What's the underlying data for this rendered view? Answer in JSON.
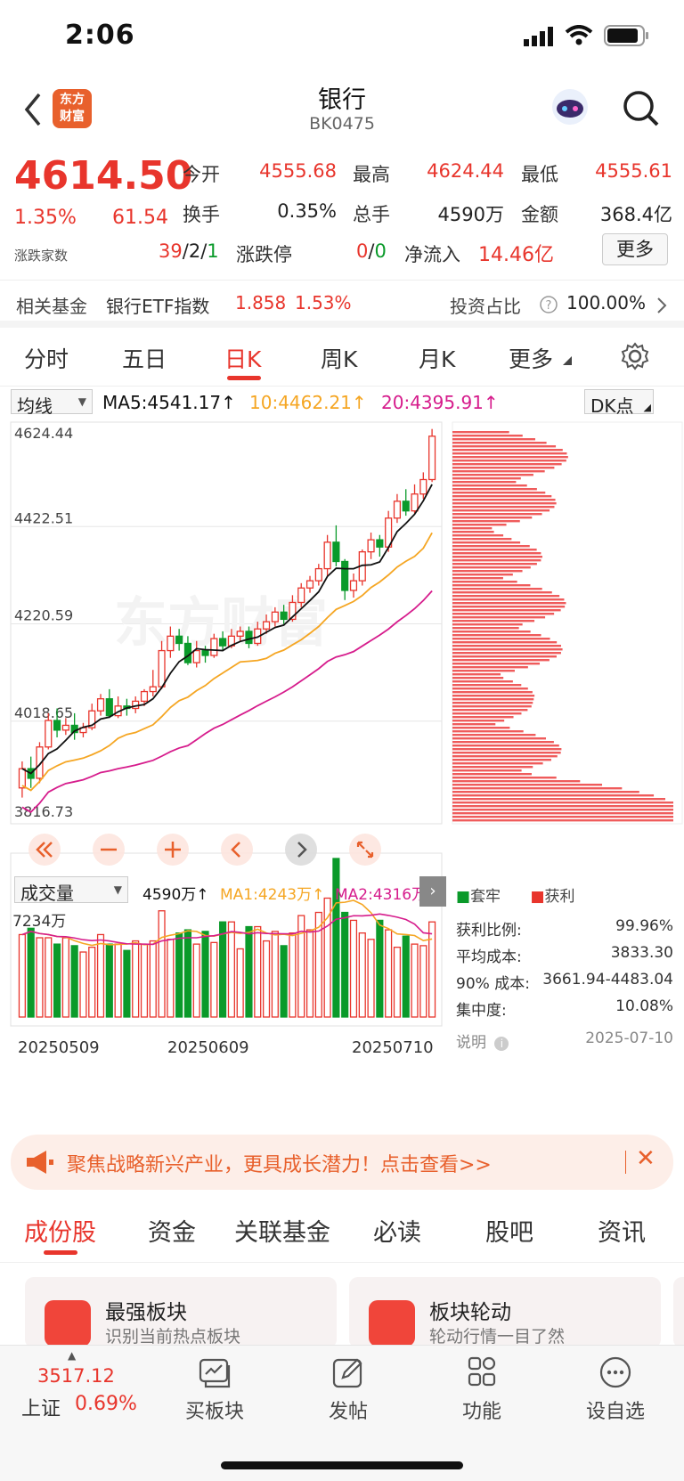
{
  "status": {
    "time": "2:06"
  },
  "header": {
    "title": "银行",
    "code": "BK0475",
    "logo_line1": "东方",
    "logo_line2": "财富"
  },
  "quote": {
    "price": "4614.50",
    "pct": "1.35%",
    "chg": "61.54",
    "breadth_label": "涨跌家数",
    "open_label": "今开",
    "open": "4555.68",
    "high_label": "最高",
    "high": "4624.44",
    "low_label": "最低",
    "low": "4555.61",
    "turnover_label": "换手",
    "turnover": "0.35%",
    "vol_label": "总手",
    "vol": "4590万",
    "amount_label": "金额",
    "amount": "368.4亿",
    "breadth_up": "39",
    "breadth_sep1": "/",
    "breadth_flat": "2",
    "breadth_sep2": "/",
    "breadth_down": "1",
    "limit_label": "涨跌停",
    "limit_up": "0",
    "limit_sep": "/",
    "limit_down": "0",
    "flow_label": "净流入",
    "flow": "14.46亿",
    "more": "更多"
  },
  "fund": {
    "label": "相关基金",
    "name": "银行ETF指数",
    "price": "1.858",
    "pct": "1.53%",
    "ratio_label": "投资占比",
    "ratio": "100.00%"
  },
  "tabs": [
    "分时",
    "五日",
    "日K",
    "周K",
    "月K",
    "更多"
  ],
  "active_tab": "日K",
  "ma": {
    "selector": "均线",
    "ma5": "MA5:4541.17↑",
    "ma10": "10:4462.21↑",
    "ma20": "20:4395.91↑",
    "dk": "DK点"
  },
  "chart_data": {
    "type": "candlestick",
    "y_ticks": [
      "4624.44",
      "4422.51",
      "4220.59",
      "4018.65",
      "3816.73"
    ],
    "ylim": [
      3816.73,
      4624.44
    ],
    "x_ticks": [
      "20250509",
      "20250609",
      "20250710"
    ],
    "volume": {
      "selector": "成交量",
      "current": "4590万↑",
      "ma1": "MA1:4243万↑",
      "ma2": "MA2:4316万",
      "max_label": "7234万"
    },
    "candles": [
      [
        3880,
        3920,
        3860,
        3935
      ],
      [
        3920,
        3900,
        3880,
        3945
      ],
      [
        3900,
        3965,
        3890,
        3975
      ],
      [
        3965,
        4020,
        3960,
        4035
      ],
      [
        4020,
        4000,
        3985,
        4045
      ],
      [
        4000,
        4010,
        3990,
        4025
      ],
      [
        4010,
        3995,
        3980,
        4035
      ],
      [
        3995,
        4005,
        3985,
        4015
      ],
      [
        4005,
        4040,
        4000,
        4055
      ],
      [
        4040,
        4065,
        4030,
        4075
      ],
      [
        4065,
        4030,
        4025,
        4085
      ],
      [
        4030,
        4050,
        4025,
        4070
      ],
      [
        4050,
        4045,
        4030,
        4065
      ],
      [
        4045,
        4060,
        4035,
        4070
      ],
      [
        4060,
        4080,
        4050,
        4085
      ],
      [
        4080,
        4090,
        4070,
        4125
      ],
      [
        4090,
        4165,
        4085,
        4185
      ],
      [
        4165,
        4195,
        4150,
        4215
      ],
      [
        4195,
        4180,
        4165,
        4210
      ],
      [
        4180,
        4140,
        4135,
        4195
      ],
      [
        4140,
        4165,
        4130,
        4185
      ],
      [
        4165,
        4155,
        4140,
        4175
      ],
      [
        4155,
        4190,
        4150,
        4200
      ],
      [
        4190,
        4175,
        4165,
        4205
      ],
      [
        4175,
        4195,
        4170,
        4210
      ],
      [
        4195,
        4205,
        4185,
        4215
      ],
      [
        4205,
        4180,
        4170,
        4215
      ],
      [
        4180,
        4210,
        4175,
        4225
      ],
      [
        4210,
        4225,
        4200,
        4240
      ],
      [
        4225,
        4245,
        4215,
        4255
      ],
      [
        4245,
        4230,
        4220,
        4260
      ],
      [
        4230,
        4265,
        4225,
        4280
      ],
      [
        4265,
        4295,
        4255,
        4305
      ],
      [
        4295,
        4310,
        4285,
        4320
      ],
      [
        4310,
        4335,
        4300,
        4345
      ],
      [
        4335,
        4390,
        4320,
        4405
      ],
      [
        4390,
        4350,
        4340,
        4425
      ],
      [
        4350,
        4290,
        4270,
        4355
      ],
      [
        4290,
        4310,
        4275,
        4325
      ],
      [
        4310,
        4370,
        4300,
        4375
      ],
      [
        4370,
        4395,
        4355,
        4410
      ],
      [
        4395,
        4380,
        4360,
        4405
      ],
      [
        4380,
        4440,
        4370,
        4455
      ],
      [
        4440,
        4475,
        4430,
        4490
      ],
      [
        4475,
        4455,
        4445,
        4500
      ],
      [
        4455,
        4490,
        4450,
        4510
      ],
      [
        4490,
        4520,
        4480,
        4535
      ],
      [
        4520,
        4610,
        4515,
        4625
      ]
    ],
    "vol_values": [
      52,
      56,
      50,
      50,
      46,
      50,
      45,
      41,
      44,
      52,
      46,
      46,
      42,
      48,
      46,
      48,
      67,
      49,
      53,
      55,
      46,
      54,
      47,
      60,
      60,
      43,
      57,
      57,
      48,
      54,
      45,
      53,
      64,
      55,
      66,
      75,
      100,
      66,
      61,
      53,
      49,
      61,
      55,
      44,
      51,
      46,
      45,
      60
    ],
    "profile_legend": {
      "trapped": "套牢",
      "profit": "获利"
    },
    "stats": [
      {
        "k": "获利比例:",
        "v": "99.96%"
      },
      {
        "k": "平均成本:",
        "v": "3833.30"
      },
      {
        "k": "90% 成本:",
        "v": "3661.94-4483.04"
      },
      {
        "k": "集中度:",
        "v": "10.08%"
      }
    ],
    "note_label": "说明",
    "note_date": "2025-07-10"
  },
  "banner": {
    "text": "聚焦战略新兴产业，更具成长潜力！点击查看>>"
  },
  "subtabs": [
    "成份股",
    "资金",
    "关联基金",
    "必读",
    "股吧",
    "资讯"
  ],
  "cards": [
    {
      "title": "最强板块",
      "sub": "识别当前热点板块"
    },
    {
      "title": "板块轮动",
      "sub": "轮动行情一目了然"
    }
  ],
  "bottom": {
    "index_value": "3517.12",
    "index_name": "上证",
    "index_pct": "0.69%",
    "items": [
      "买板块",
      "发帖",
      "功能",
      "设自选"
    ]
  },
  "colors": {
    "up": "#e8352c",
    "down": "#0a9a2a",
    "accent": "#e8602c"
  }
}
